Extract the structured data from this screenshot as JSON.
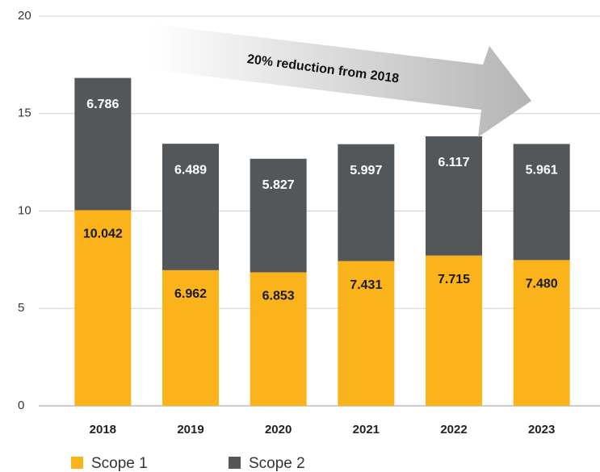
{
  "chart_data": {
    "type": "stacked_bar",
    "categories": [
      "2018",
      "2019",
      "2020",
      "2021",
      "2022",
      "2023"
    ],
    "series": [
      {
        "name": "Scope 1",
        "color": "#fbb31b",
        "values": [
          10.042,
          6.962,
          6.853,
          7.431,
          7.715,
          7.48
        ],
        "value_labels": [
          "10.042",
          "6.962",
          "6.853",
          "7.431",
          "7.715",
          "7.480"
        ]
      },
      {
        "name": "Scope 2",
        "color": "#545759",
        "values": [
          6.786,
          6.489,
          5.827,
          5.997,
          6.117,
          5.961
        ],
        "value_labels": [
          "6.786",
          "6.489",
          "5.827",
          "5.997",
          "6.117",
          "5.961"
        ]
      }
    ],
    "annotation": "20% reduction from 2018",
    "ylim": [
      0,
      20
    ],
    "yticks": [
      0,
      5,
      10,
      15,
      20
    ],
    "grid": true,
    "legend": "bottom-left"
  }
}
